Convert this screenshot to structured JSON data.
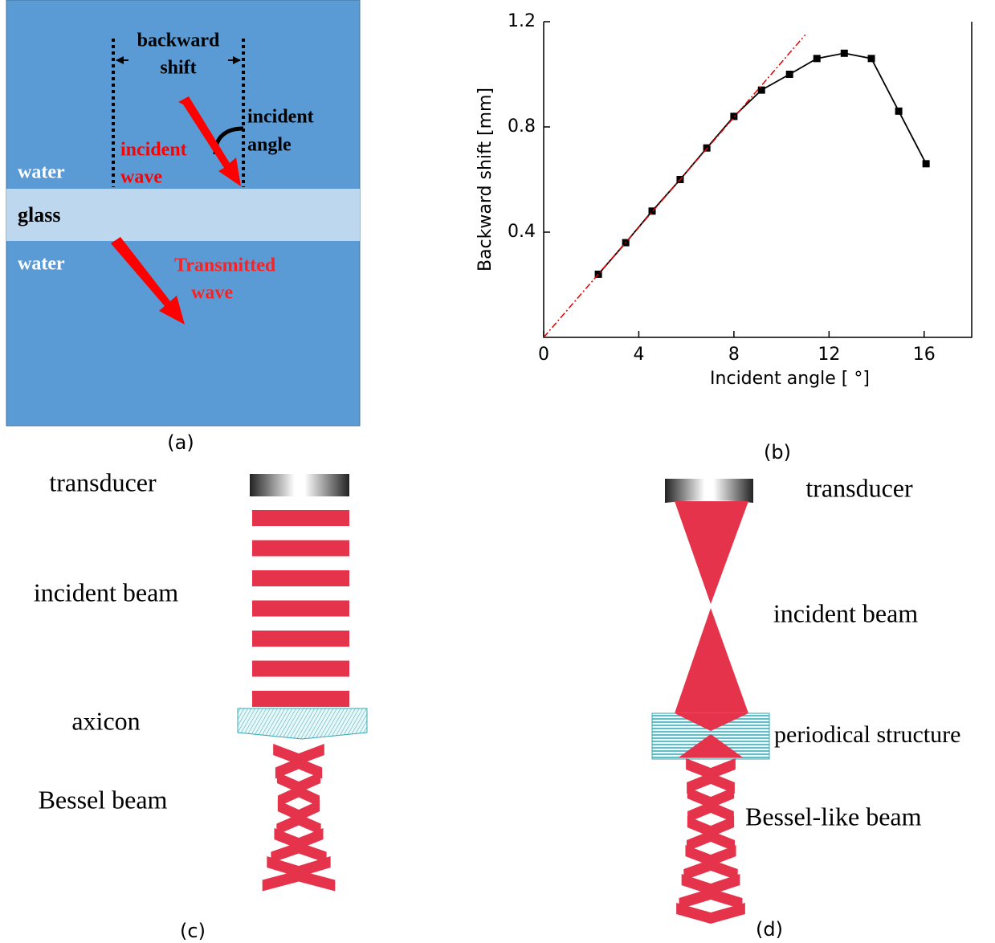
{
  "chart_data": {
    "type": "line",
    "x_label": "Incident angle [ °]",
    "y_label": "Backward shift [mm]",
    "xlim": [
      0,
      18
    ],
    "ylim": [
      0,
      1.2
    ],
    "xticks": [
      0,
      4,
      8,
      12,
      16
    ],
    "yticks": [
      0.4,
      0.8,
      1.2
    ],
    "series": [
      {
        "color": "#000000",
        "markers": true,
        "x": [
          2.3,
          3.45,
          4.56,
          5.74,
          6.86,
          8.0,
          9.16,
          10.34,
          11.49,
          12.64,
          13.78,
          14.93,
          16.08
        ],
        "values": [
          0.24,
          0.36,
          0.48,
          0.6,
          0.72,
          0.84,
          0.94,
          1.0,
          1.06,
          1.08,
          1.06,
          0.86,
          0.66
        ]
      },
      {
        "color": "#e00000",
        "markers": false,
        "dash": "dashdot",
        "x": [
          0,
          11
        ],
        "values": [
          0,
          1.15
        ]
      }
    ]
  },
  "panel_a": {
    "label": "(a)",
    "backward_shift": [
      "backward",
      "shift"
    ],
    "incident_angle": [
      "incident",
      "angle"
    ],
    "incident_wave": [
      "incident",
      "wave"
    ],
    "water_top": "water",
    "glass": "glass",
    "water_bottom": "water",
    "transmitted_wave": [
      "Transmitted",
      "wave"
    ]
  },
  "panel_b": {
    "label": "(b)"
  },
  "panel_c": {
    "label": "(c)",
    "transducer": "transducer",
    "incident_beam": "incident beam",
    "axicon": "axicon",
    "bessel_beam": "Bessel beam"
  },
  "panel_d": {
    "label": "(d)",
    "transducer": "transducer",
    "incident_beam": "incident beam",
    "periodical_structure": "periodical structure",
    "bessel_like_beam": "Bessel-like beam"
  }
}
